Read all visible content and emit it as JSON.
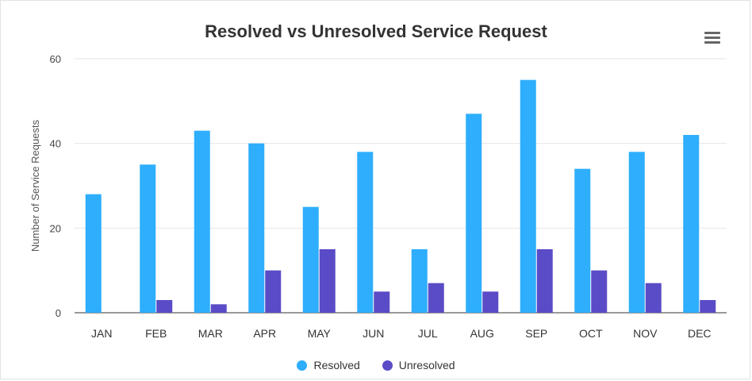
{
  "menu": {
    "icon": "hamburger-menu-icon"
  },
  "colors": {
    "resolved": "#2eaefc",
    "unresolved": "#5a4cc6",
    "grid": "#e6e6e6",
    "axis": "#333333"
  },
  "chart_data": {
    "type": "bar",
    "title": "Resolved vs Unresolved Service Request",
    "xlabel": "",
    "ylabel": "Number of Service Requests",
    "ylim": [
      0,
      60
    ],
    "yticks": [
      0,
      20,
      40,
      60
    ],
    "grid": true,
    "legend_position": "bottom",
    "categories": [
      "JAN",
      "FEB",
      "MAR",
      "APR",
      "MAY",
      "JUN",
      "JUL",
      "AUG",
      "SEP",
      "OCT",
      "NOV",
      "DEC"
    ],
    "series": [
      {
        "name": "Resolved",
        "values": [
          28,
          35,
          43,
          40,
          25,
          38,
          15,
          47,
          55,
          34,
          38,
          42
        ]
      },
      {
        "name": "Unresolved",
        "values": [
          0,
          3,
          2,
          10,
          15,
          5,
          7,
          5,
          15,
          10,
          7,
          3
        ]
      }
    ]
  }
}
